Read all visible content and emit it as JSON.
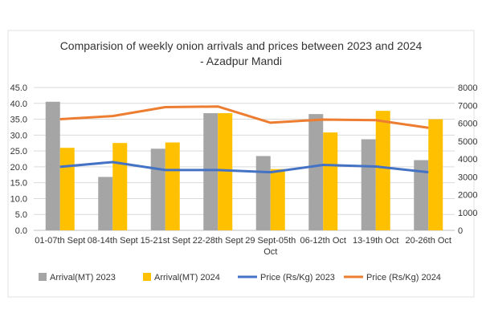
{
  "chart_data": {
    "type": "bar",
    "title": [
      "Comparision of weekly onion arrivals and prices between 2023 and 2024",
      "- Azadpur Mandi"
    ],
    "categories": [
      "01-07th Sept",
      "08-14th Sept",
      "15-21st Sept",
      "22-28th Sept",
      "29 Sept-05th Oct",
      "06-12th Oct",
      "13-19th Oct",
      "20-26th Oct"
    ],
    "category_label_lines": [
      [
        "01-07th Sept"
      ],
      [
        "08-14th Sept"
      ],
      [
        "15-21st Sept"
      ],
      [
        "22-28th Sept"
      ],
      [
        "29 Sept-05th",
        "Oct"
      ],
      [
        "06-12th Oct"
      ],
      [
        "13-19th Oct"
      ],
      [
        "20-26th Oct"
      ]
    ],
    "series": [
      {
        "name": "Arrival(MT) 2023",
        "type": "bar",
        "axis": "right",
        "color": "#a5a5a5",
        "values": [
          7200,
          2990,
          4570,
          6560,
          4160,
          6510,
          5100,
          3930
        ]
      },
      {
        "name": "Arrival(MT) 2024",
        "type": "bar",
        "axis": "right",
        "color": "#ffc000",
        "values": [
          4620,
          4890,
          4920,
          6560,
          3430,
          5480,
          6690,
          6220
        ]
      },
      {
        "name": "Price (Rs/Kg) 2023",
        "type": "line",
        "axis": "left",
        "color": "#4472c4",
        "values": [
          20.0,
          21.5,
          19.0,
          19.0,
          18.3,
          20.6,
          20.1,
          18.3
        ]
      },
      {
        "name": "Price (Rs/Kg) 2024",
        "type": "line",
        "axis": "left",
        "color": "#ed7d31",
        "values": [
          35.0,
          36.0,
          38.8,
          39.0,
          33.9,
          34.9,
          34.7,
          32.3
        ]
      }
    ],
    "left_axis": {
      "ylim": [
        0,
        45
      ],
      "ticks": [
        "0.0",
        "5.0",
        "10.0",
        "15.0",
        "20.0",
        "25.0",
        "30.0",
        "35.0",
        "40.0",
        "45.0"
      ]
    },
    "right_axis": {
      "ylim": [
        0,
        8000
      ],
      "ticks": [
        "0",
        "1000",
        "2000",
        "3000",
        "4000",
        "5000",
        "6000",
        "7000",
        "8000"
      ]
    },
    "grid": true,
    "legend": "bottom"
  }
}
